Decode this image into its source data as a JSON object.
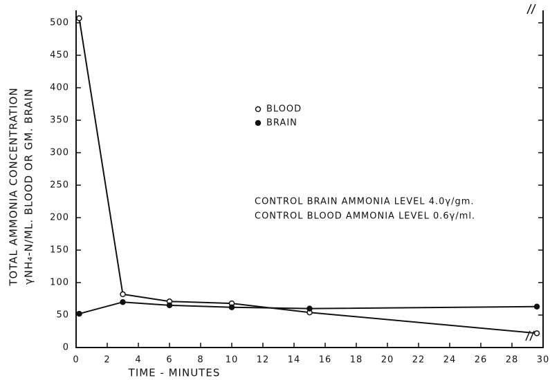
{
  "chart_data": {
    "type": "line",
    "xlabel": "TIME - MINUTES",
    "ylabel": [
      "TOTAL AMMONIA CONCENTRATION",
      "γNH₄-N/ML. BLOOD OR GM. BRAIN"
    ],
    "x": [
      0.2,
      3,
      6,
      10,
      15,
      29.6
    ],
    "series": [
      {
        "name": "BLOOD",
        "color": "#111111",
        "marker": "open",
        "values": [
          507,
          82,
          71,
          68,
          54,
          22
        ]
      },
      {
        "name": "BRAIN",
        "color": "#111111",
        "marker": "filled",
        "values": [
          52,
          70,
          65,
          62,
          60,
          63
        ]
      }
    ],
    "annotations": [
      "CONTROL BRAIN AMMONIA LEVEL 4.0γ/gm.",
      "CONTROL BLOOD AMMONIA LEVEL 0.6γ/ml."
    ],
    "xlim": [
      0,
      30
    ],
    "xticks": [
      0,
      2,
      4,
      6,
      8,
      10,
      12,
      14,
      16,
      18,
      20,
      22,
      24,
      26,
      28,
      30
    ],
    "ylim": [
      0,
      500
    ],
    "yticks": [
      0,
      50,
      100,
      150,
      200,
      250,
      300,
      350,
      400,
      450,
      500
    ],
    "grid": false
  }
}
